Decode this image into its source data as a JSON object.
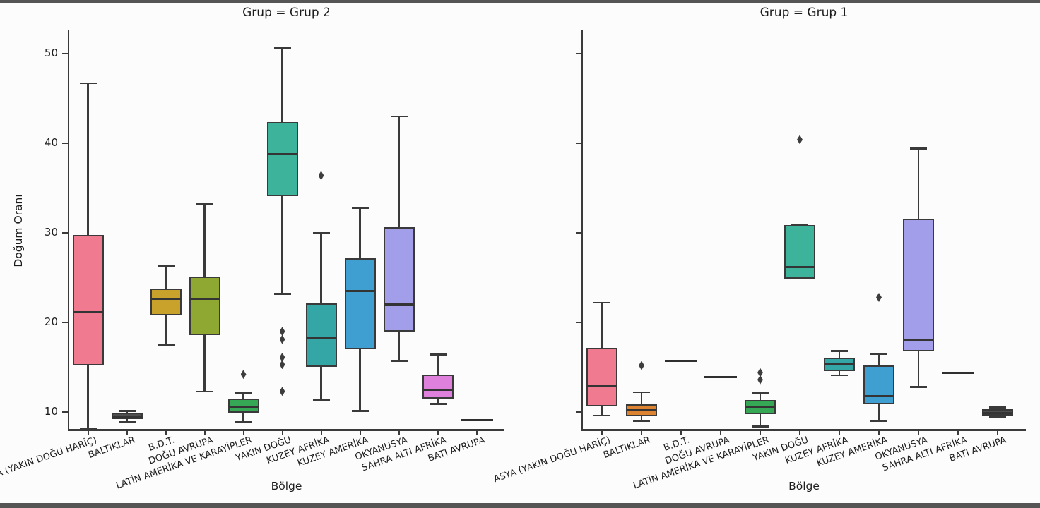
{
  "figure": {
    "background": "#fcfcfc",
    "line_color": "#3a3a3a"
  },
  "chart_data": {
    "type": "boxplot",
    "facet_field": "Grup",
    "xlabel": "Bölge",
    "ylabel": "Doğum Oranı",
    "grid": false,
    "legend": "none",
    "yticks": [
      "50",
      "40",
      "30",
      "20",
      "10"
    ],
    "ytick_values": [
      50,
      40,
      30,
      20,
      10
    ],
    "ylim_bottom_at_axis": 8.1,
    "categories": [
      "ASYA (YAKIN DOĞU HARİÇ)",
      "BALTIKLAR",
      "B.D.T.",
      "DOĞU AVRUPA",
      "LATİN AMERİKA VE KARAYİPLER",
      "YAKIN DOĞU",
      "KUZEY AFRİKA",
      "KUZEY AMERİKA",
      "OKYANUSYA",
      "SAHRA ALTI AFRİKA",
      "BATI AVRUPA"
    ],
    "palette": {
      "ASYA (YAKIN DOĞU HARİÇ)": "#f07a90",
      "BALTIKLAR": "#dd8433",
      "B.D.T.": "#c9a22b",
      "DOĞU AVRUPA": "#8fa832",
      "LATİN AMERİKA VE KARAYİPLER": "#36a754",
      "YAKIN DOĞU": "#3db39c",
      "KUZEY AFRİKA": "#35a6a6",
      "KUZEY AMERİKA": "#3f9fd0",
      "OKYANUSYA": "#a29ee9",
      "SAHRA ALTI AFRİKA": "#de80dc",
      "BATI AVRUPA": "#ef6fc0"
    },
    "panels": [
      {
        "title": "Grup = Grup 2",
        "boxes": [
          {
            "category": "ASYA (YAKIN DOĞU HARİÇ)",
            "type": "box",
            "q1": 15.2,
            "median": 21.2,
            "q3": 29.8,
            "whisker_low": 8.2,
            "whisker_high": 46.7,
            "outliers": []
          },
          {
            "category": "BALTIKLAR",
            "type": "flatbox",
            "q1": 9.2,
            "median": 9.5,
            "q3": 9.9,
            "whisker_low": 8.9,
            "whisker_high": 10.1,
            "outliers": []
          },
          {
            "category": "B.D.T.",
            "type": "box",
            "q1": 20.8,
            "median": 22.6,
            "q3": 23.8,
            "whisker_low": 17.5,
            "whisker_high": 26.3,
            "outliers": []
          },
          {
            "category": "DOĞU AVRUPA",
            "type": "box",
            "q1": 18.6,
            "median": 22.6,
            "q3": 25.1,
            "whisker_low": 12.3,
            "whisker_high": 33.2,
            "outliers": []
          },
          {
            "category": "LATİN AMERİKA VE KARAYİPLER",
            "type": "box",
            "q1": 9.9,
            "median": 10.6,
            "q3": 11.5,
            "whisker_low": 8.9,
            "whisker_high": 12.1,
            "outliers": [
              14.2
            ]
          },
          {
            "category": "YAKIN DOĞU",
            "type": "box",
            "q1": 34.1,
            "median": 38.8,
            "q3": 42.4,
            "whisker_low": 23.2,
            "whisker_high": 50.6,
            "outliers": [
              19.0,
              18.1,
              16.1,
              15.3,
              12.3
            ]
          },
          {
            "category": "KUZEY AFRİKA",
            "type": "box",
            "q1": 15.0,
            "median": 18.3,
            "q3": 22.1,
            "whisker_low": 11.3,
            "whisker_high": 30.0,
            "outliers": [
              36.4
            ]
          },
          {
            "category": "KUZEY AMERİKA",
            "type": "box",
            "q1": 17.0,
            "median": 23.5,
            "q3": 27.2,
            "whisker_low": 10.1,
            "whisker_high": 32.8,
            "outliers": []
          },
          {
            "category": "OKYANUSYA",
            "type": "box",
            "q1": 19.0,
            "median": 22.0,
            "q3": 30.6,
            "whisker_low": 15.7,
            "whisker_high": 43.0,
            "outliers": []
          },
          {
            "category": "SAHRA ALTI AFRİKA",
            "type": "box",
            "q1": 11.5,
            "median": 12.5,
            "q3": 14.2,
            "whisker_low": 10.9,
            "whisker_high": 16.4,
            "outliers": []
          },
          {
            "category": "BATI AVRUPA",
            "type": "line",
            "value": 9.1,
            "outliers": []
          }
        ]
      },
      {
        "title": "Grup = Grup 1",
        "boxes": [
          {
            "category": "ASYA (YAKIN DOĞU HARİÇ)",
            "type": "box",
            "q1": 10.6,
            "median": 12.9,
            "q3": 17.2,
            "whisker_low": 9.6,
            "whisker_high": 22.2,
            "outliers": []
          },
          {
            "category": "BALTIKLAR",
            "type": "box",
            "q1": 9.5,
            "median": 10.2,
            "q3": 10.9,
            "whisker_low": 9.0,
            "whisker_high": 12.2,
            "outliers": [
              15.2
            ]
          },
          {
            "category": "B.D.T.",
            "type": "line",
            "value": 15.7,
            "outliers": []
          },
          {
            "category": "DOĞU AVRUPA",
            "type": "line",
            "value": 13.9,
            "outliers": []
          },
          {
            "category": "LATİN AMERİKA VE KARAYİPLER",
            "type": "box",
            "q1": 9.8,
            "median": 10.6,
            "q3": 11.3,
            "whisker_low": 8.4,
            "whisker_high": 12.1,
            "outliers": [
              14.4,
              13.6
            ]
          },
          {
            "category": "YAKIN DOĞU",
            "type": "box",
            "q1": 24.9,
            "median": 26.2,
            "q3": 30.9,
            "whisker_low": 24.9,
            "whisker_high": 30.9,
            "outliers": [
              40.4
            ]
          },
          {
            "category": "KUZEY AFRİKA",
            "type": "box",
            "q1": 14.6,
            "median": 15.3,
            "q3": 16.1,
            "whisker_low": 14.1,
            "whisker_high": 16.8,
            "outliers": []
          },
          {
            "category": "KUZEY AMERİKA",
            "type": "box",
            "q1": 10.9,
            "median": 11.8,
            "q3": 15.2,
            "whisker_low": 9.0,
            "whisker_high": 16.5,
            "outliers": [
              22.8
            ]
          },
          {
            "category": "OKYANUSYA",
            "type": "box",
            "q1": 16.8,
            "median": 18.0,
            "q3": 31.6,
            "whisker_low": 12.8,
            "whisker_high": 39.4,
            "outliers": []
          },
          {
            "category": "SAHRA ALTI AFRİKA",
            "type": "line",
            "value": 14.4,
            "outliers": []
          },
          {
            "category": "BATI AVRUPA",
            "type": "flatbox",
            "q1": 9.6,
            "median": 9.9,
            "q3": 10.3,
            "whisker_low": 9.4,
            "whisker_high": 10.5,
            "outliers": []
          }
        ]
      }
    ]
  }
}
